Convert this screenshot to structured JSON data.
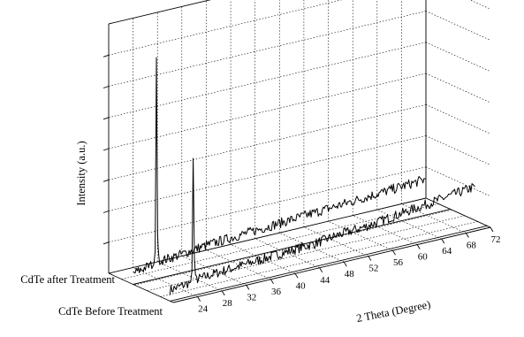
{
  "chart_data": {
    "type": "line",
    "title": "",
    "xlabel": "2 Theta (Degree)",
    "ylabel": "Intensity (a.u.)",
    "xlim": [
      20,
      72
    ],
    "x_ticks": [
      24,
      28,
      32,
      36,
      40,
      44,
      48,
      52,
      56,
      60,
      64,
      68,
      72
    ],
    "grid": true,
    "series": [
      {
        "name": "CdTe Before Treatment",
        "x": [
          20,
          22,
          23.4,
          23.6,
          23.8,
          24.0,
          24.2,
          25,
          28,
          32,
          36,
          40,
          44,
          48,
          52,
          56,
          60,
          64,
          68,
          70
        ],
        "values": [
          3.5,
          4,
          4.5,
          8,
          44,
          12,
          5,
          5,
          5.5,
          6,
          6.5,
          7,
          7.5,
          8.5,
          9,
          10,
          11,
          12,
          13,
          13.5
        ]
      },
      {
        "name": "CdTe after Treatment",
        "x": [
          20,
          22,
          23.4,
          23.6,
          23.8,
          24.0,
          24.2,
          25,
          28,
          32,
          36,
          40,
          44,
          48,
          52,
          56,
          60,
          64,
          68
        ],
        "values": [
          3.5,
          4.5,
          5,
          9,
          71,
          14,
          6,
          5.5,
          6,
          7,
          7.5,
          8,
          8.5,
          9,
          9.5,
          10,
          10.5,
          11,
          11.5
        ]
      }
    ]
  }
}
